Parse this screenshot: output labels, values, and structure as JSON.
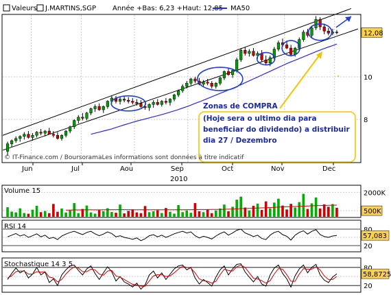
{
  "header": {
    "label": "Valeurs",
    "symbol": "J.MARTINS,SGP",
    "stats": "Année +Bas: 6,23 +Haut: 12,85",
    "legend_ma": "MA50"
  },
  "colors": {
    "background": "#ffffff",
    "frame": "#000000",
    "grid": "#c8c8c8",
    "candle_up": "#00a000",
    "candle_down": "#d00000",
    "wick": "#000000",
    "ma50": "#2a2ad0",
    "channel": "#000000",
    "ellipse": "#1e3cd0",
    "arrow": "#1e3cd0",
    "callout_arrow": "#f5c400",
    "annotation_text": "#1a2aa0",
    "annotation_border": "#f5c400",
    "price_tag_bg": "#ffd24a",
    "volume_up": "#00b000",
    "volume_down": "#d00000",
    "volume_avg": "#d00000",
    "indicator": "#000000",
    "stoch_signal": "#d00000",
    "watermark": "#333333"
  },
  "annotation": {
    "lines": [
      "Zonas de COMPRA",
      "(Hoje sera o ultimo dia para",
      "beneficiar do dividendo) a distribuir",
      "dia 27 / Dezembro"
    ]
  },
  "watermark": "© IT-Finance.com / BoursoramaLes informations sont données à titre indicatif",
  "chart_data": [
    {
      "type": "candlestick",
      "name": "price",
      "x_labels": [
        "Jun",
        "Jul",
        "Aou",
        "Sep",
        "Oct",
        "Nov",
        "Dec"
      ],
      "year_label": "2010",
      "y_ticks": [
        8,
        10
      ],
      "ylim": [
        6.0,
        12.9
      ],
      "last_price_label": "12,08",
      "series": [
        {
          "name": "price",
          "ohlc": [
            [
              6.5,
              6.95,
              6.3,
              6.85
            ],
            [
              6.85,
              7.05,
              6.7,
              7.0
            ],
            [
              7.0,
              7.2,
              6.9,
              7.1
            ],
            [
              7.1,
              7.25,
              6.95,
              7.2
            ],
            [
              7.2,
              7.4,
              7.05,
              7.3
            ],
            [
              7.3,
              7.45,
              7.1,
              7.15
            ],
            [
              7.15,
              7.35,
              7.0,
              7.25
            ],
            [
              7.25,
              7.45,
              7.15,
              7.4
            ],
            [
              7.4,
              7.55,
              7.25,
              7.35
            ],
            [
              7.35,
              7.5,
              7.2,
              7.45
            ],
            [
              7.45,
              7.6,
              7.3,
              7.3
            ],
            [
              7.3,
              7.45,
              7.15,
              7.25
            ],
            [
              7.25,
              7.4,
              7.05,
              7.1
            ],
            [
              7.1,
              7.3,
              7.0,
              7.25
            ],
            [
              7.25,
              7.5,
              7.15,
              7.45
            ],
            [
              7.45,
              7.7,
              7.35,
              7.65
            ],
            [
              7.65,
              8.0,
              7.55,
              7.95
            ],
            [
              7.95,
              8.2,
              7.8,
              8.1
            ],
            [
              8.1,
              8.3,
              7.95,
              8.05
            ],
            [
              8.05,
              8.35,
              7.95,
              8.3
            ],
            [
              8.3,
              8.55,
              8.2,
              8.5
            ],
            [
              8.5,
              8.7,
              8.35,
              8.6
            ],
            [
              8.6,
              8.75,
              8.4,
              8.45
            ],
            [
              8.45,
              8.65,
              8.3,
              8.6
            ],
            [
              8.6,
              8.9,
              8.5,
              8.85
            ],
            [
              8.85,
              9.1,
              8.75,
              9.0
            ],
            [
              9.0,
              9.1,
              8.75,
              8.85
            ],
            [
              8.85,
              9.05,
              8.7,
              8.95
            ],
            [
              8.95,
              9.1,
              8.8,
              8.9
            ],
            [
              8.9,
              9.05,
              8.75,
              8.85
            ],
            [
              8.85,
              9.0,
              8.7,
              8.8
            ],
            [
              8.8,
              8.95,
              8.65,
              8.75
            ],
            [
              8.75,
              8.9,
              8.55,
              8.6
            ],
            [
              8.6,
              8.75,
              8.45,
              8.55
            ],
            [
              8.55,
              8.75,
              8.4,
              8.7
            ],
            [
              8.7,
              8.9,
              8.55,
              8.8
            ],
            [
              8.8,
              8.95,
              8.65,
              8.7
            ],
            [
              8.7,
              8.9,
              8.6,
              8.85
            ],
            [
              8.85,
              9.0,
              8.7,
              8.8
            ],
            [
              8.8,
              9.0,
              8.65,
              8.95
            ],
            [
              8.95,
              9.2,
              8.85,
              9.15
            ],
            [
              9.15,
              9.4,
              9.05,
              9.35
            ],
            [
              9.35,
              9.65,
              9.25,
              9.55
            ],
            [
              9.55,
              9.8,
              9.45,
              9.7
            ],
            [
              9.7,
              9.95,
              9.6,
              9.9
            ],
            [
              9.9,
              10.0,
              9.7,
              9.8
            ],
            [
              9.8,
              9.95,
              9.6,
              9.65
            ],
            [
              9.65,
              9.85,
              9.55,
              9.75
            ],
            [
              9.75,
              9.9,
              9.6,
              9.7
            ],
            [
              9.7,
              9.8,
              9.45,
              9.55
            ],
            [
              9.55,
              9.75,
              9.45,
              9.7
            ],
            [
              9.7,
              10.0,
              9.6,
              9.95
            ],
            [
              9.95,
              10.3,
              9.85,
              10.25
            ],
            [
              10.25,
              10.4,
              10.05,
              10.1
            ],
            [
              10.1,
              10.35,
              9.95,
              10.3
            ],
            [
              10.3,
              10.9,
              10.2,
              10.8
            ],
            [
              10.8,
              11.35,
              10.7,
              11.25
            ],
            [
              11.25,
              11.4,
              11.0,
              11.1
            ],
            [
              11.1,
              11.3,
              10.95,
              11.2
            ],
            [
              11.2,
              11.35,
              10.95,
              11.0
            ],
            [
              11.0,
              11.2,
              10.85,
              11.1
            ],
            [
              11.1,
              11.25,
              10.7,
              10.8
            ],
            [
              10.8,
              11.0,
              10.55,
              10.65
            ],
            [
              10.65,
              11.0,
              10.5,
              10.9
            ],
            [
              10.9,
              11.4,
              10.8,
              11.3
            ],
            [
              11.3,
              11.7,
              11.2,
              11.6
            ],
            [
              11.6,
              11.8,
              11.4,
              11.5
            ],
            [
              11.5,
              11.7,
              11.3,
              11.35
            ],
            [
              11.35,
              11.5,
              10.95,
              11.05
            ],
            [
              11.05,
              11.4,
              10.95,
              11.35
            ],
            [
              11.35,
              11.85,
              11.25,
              11.75
            ],
            [
              11.75,
              12.2,
              11.65,
              12.1
            ],
            [
              12.1,
              12.25,
              11.85,
              11.95
            ],
            [
              11.95,
              12.4,
              11.85,
              12.3
            ],
            [
              12.3,
              12.85,
              12.2,
              12.7
            ],
            [
              12.7,
              12.8,
              12.2,
              12.35
            ],
            [
              12.35,
              12.5,
              12.0,
              12.15
            ],
            [
              12.15,
              12.3,
              11.95,
              12.05
            ],
            [
              12.05,
              12.25,
              11.95,
              12.1
            ],
            [
              12.1,
              12.2,
              12.0,
              12.08
            ]
          ]
        },
        {
          "name": "MA50",
          "values": [
            null,
            null,
            null,
            null,
            null,
            null,
            null,
            null,
            null,
            null,
            null,
            null,
            null,
            null,
            null,
            null,
            null,
            null,
            null,
            null,
            7.3,
            7.35,
            7.4,
            7.45,
            7.5,
            7.55,
            7.62,
            7.68,
            7.74,
            7.8,
            7.86,
            7.92,
            7.97,
            8.02,
            8.07,
            8.12,
            8.17,
            8.22,
            8.28,
            8.34,
            8.4,
            8.46,
            8.53,
            8.6,
            8.67,
            8.75,
            8.82,
            8.9,
            8.98,
            9.06,
            9.14,
            9.22,
            9.3,
            9.38,
            9.46,
            9.54,
            9.63,
            9.72,
            9.81,
            9.9,
            9.99,
            10.08,
            10.17,
            10.26,
            10.35,
            10.44,
            10.53,
            10.62,
            10.7,
            10.78,
            10.86,
            10.94,
            11.02,
            11.1,
            11.18,
            11.26,
            11.33,
            11.4,
            11.47,
            11.54
          ]
        }
      ]
    },
    {
      "type": "bar",
      "name": "Volume 15",
      "title": "Volume 15",
      "y_tick_labels": [
        "2000K",
        "500K"
      ],
      "ylim": [
        0,
        2300
      ],
      "values": [
        780,
        420,
        360,
        690,
        310,
        250,
        580,
        900,
        380,
        470,
        300,
        1050,
        410,
        680,
        350,
        520,
        1120,
        300,
        640,
        920,
        360,
        260,
        540,
        460,
        700,
        390,
        330,
        1000,
        280,
        480,
        610,
        360,
        300,
        880,
        380,
        450,
        540,
        310,
        720,
        410,
        260,
        960,
        380,
        520,
        330,
        1120,
        450,
        380,
        600,
        300,
        520,
        680,
        1000,
        450,
        820,
        1400,
        1650,
        760,
        520,
        900,
        1080,
        560,
        1260,
        700,
        1160,
        1480,
        920,
        600,
        1060,
        760,
        1200,
        1880,
        640,
        1100,
        1580,
        680,
        1020,
        820,
        1040,
        740
      ],
      "up": [
        true,
        true,
        true,
        true,
        true,
        false,
        true,
        true,
        false,
        true,
        false,
        false,
        false,
        true,
        true,
        true,
        true,
        true,
        false,
        true,
        true,
        true,
        false,
        true,
        true,
        true,
        false,
        true,
        false,
        false,
        false,
        false,
        false,
        false,
        true,
        true,
        false,
        true,
        false,
        true,
        true,
        true,
        true,
        true,
        true,
        false,
        false,
        true,
        false,
        false,
        true,
        true,
        true,
        false,
        true,
        true,
        true,
        false,
        true,
        false,
        true,
        false,
        false,
        true,
        true,
        true,
        false,
        false,
        false,
        true,
        true,
        true,
        false,
        true,
        true,
        false,
        false,
        false,
        true,
        false
      ],
      "moving_average": [
        null,
        null,
        null,
        null,
        null,
        null,
        null,
        null,
        null,
        null,
        null,
        null,
        null,
        null,
        550,
        552,
        565,
        560,
        568,
        575,
        570,
        565,
        568,
        572,
        580,
        585,
        582,
        590,
        585,
        583,
        580,
        578,
        575,
        580,
        578,
        574,
        576,
        572,
        575,
        578,
        576,
        582,
        580,
        584,
        582,
        590,
        592,
        594,
        596,
        598,
        600,
        606,
        616,
        622,
        630,
        645,
        668,
        680,
        688,
        700,
        715,
        728,
        745,
        758,
        772,
        790,
        806,
        818,
        830,
        842,
        856,
        872,
        884,
        896,
        908,
        918,
        928,
        938,
        946,
        952
      ]
    },
    {
      "type": "line",
      "name": "RSI 14",
      "title": "RSI 14",
      "y_tick_labels": [
        "80",
        "20"
      ],
      "ylim": [
        0,
        100
      ],
      "last_value_label": "57,083",
      "values": [
        52,
        58,
        64,
        55,
        60,
        50,
        56,
        63,
        52,
        58,
        46,
        50,
        42,
        55,
        62,
        68,
        72,
        66,
        60,
        68,
        72,
        63,
        56,
        62,
        70,
        64,
        52,
        56,
        50,
        47,
        43,
        48,
        38,
        45,
        56,
        60,
        52,
        58,
        50,
        56,
        63,
        68,
        72,
        66,
        70,
        56,
        48,
        54,
        50,
        44,
        55,
        64,
        70,
        58,
        66,
        76,
        80,
        66,
        60,
        53,
        58,
        46,
        42,
        58,
        68,
        72,
        60,
        54,
        40,
        58,
        68,
        74,
        62,
        72,
        78,
        60,
        53,
        50,
        55,
        57.08
      ]
    },
    {
      "type": "line",
      "name": "Stochastique 14 3 5",
      "title": "Stochastique 14 3 5",
      "y_tick_labels": [
        "80",
        "20"
      ],
      "ylim": [
        0,
        100
      ],
      "last_value_label": "58,8725",
      "series": [
        {
          "name": "%K",
          "values": [
            40,
            60,
            78,
            62,
            70,
            45,
            58,
            80,
            55,
            65,
            30,
            42,
            20,
            55,
            72,
            85,
            88,
            70,
            55,
            75,
            85,
            60,
            40,
            62,
            82,
            66,
            35,
            50,
            32,
            25,
            15,
            28,
            8,
            22,
            55,
            68,
            45,
            62,
            40,
            58,
            75,
            85,
            88,
            72,
            80,
            45,
            25,
            40,
            30,
            18,
            48,
            72,
            85,
            55,
            75,
            90,
            92,
            65,
            48,
            32,
            50,
            25,
            18,
            55,
            78,
            88,
            60,
            42,
            15,
            52,
            75,
            88,
            62,
            80,
            90,
            55,
            38,
            30,
            48,
            58.87
          ]
        },
        {
          "name": "%D",
          "values": [
            45,
            52,
            66,
            68,
            68,
            58,
            58,
            66,
            64,
            66,
            48,
            45,
            32,
            40,
            58,
            72,
            82,
            78,
            66,
            66,
            74,
            72,
            58,
            54,
            68,
            70,
            52,
            48,
            40,
            32,
            24,
            22,
            18,
            18,
            35,
            52,
            56,
            56,
            50,
            52,
            62,
            74,
            84,
            80,
            78,
            62,
            42,
            36,
            34,
            28,
            34,
            56,
            74,
            70,
            68,
            82,
            88,
            80,
            62,
            44,
            42,
            36,
            28,
            36,
            58,
            76,
            74,
            56,
            34,
            34,
            58,
            76,
            74,
            74,
            82,
            72,
            52,
            40,
            40,
            50
          ]
        }
      ]
    }
  ]
}
